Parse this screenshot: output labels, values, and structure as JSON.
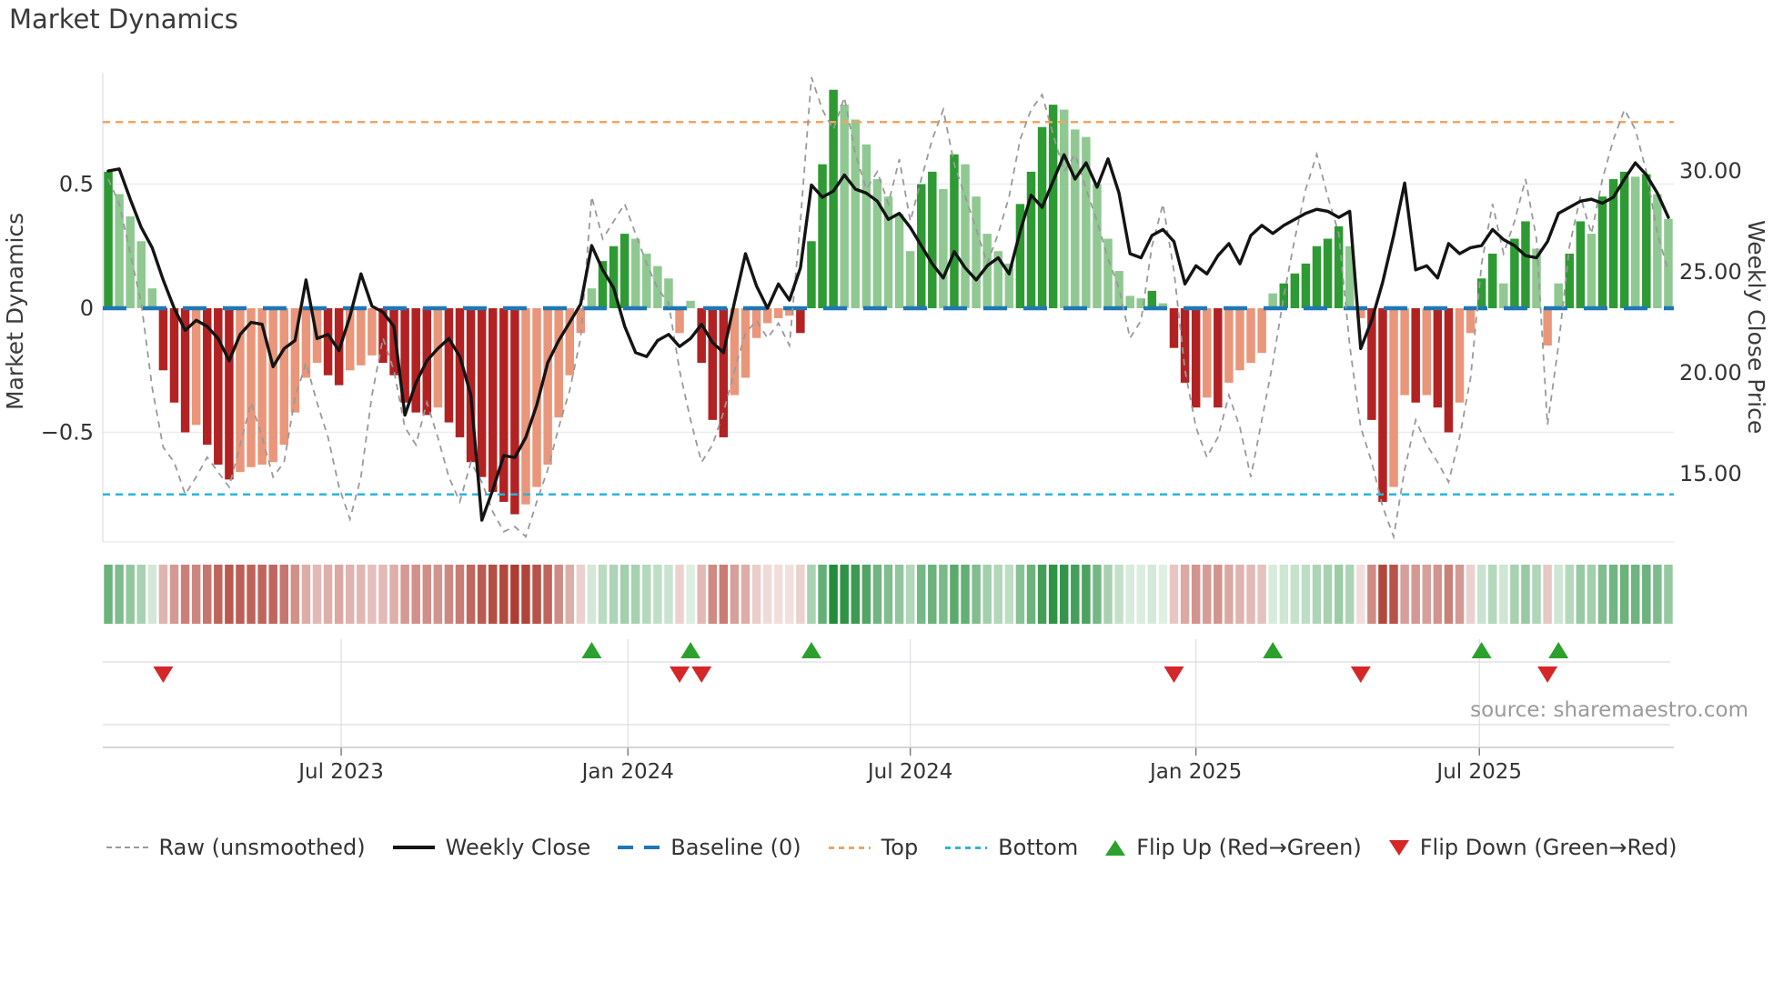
{
  "title": "Market Dynamics",
  "source": "source: sharemaestro.com",
  "axes": {
    "left_label": "Market Dynamics",
    "right_label": "Weekly Close Price",
    "left_ticks": [
      {
        "label": "0.5",
        "value": 0.5
      },
      {
        "label": "0",
        "value": 0
      },
      {
        "label": "−0.5",
        "value": -0.5
      }
    ],
    "right_ticks": [
      {
        "label": "30.00",
        "value": 30
      },
      {
        "label": "25.00",
        "value": 25
      },
      {
        "label": "20.00",
        "value": 20
      },
      {
        "label": "15.00",
        "value": 15
      }
    ],
    "x_ticks": [
      {
        "label": "Jul 2023",
        "week": 21.2
      },
      {
        "label": "Jan 2024",
        "week": 47.3
      },
      {
        "label": "Jul 2024",
        "week": 73.0
      },
      {
        "label": "Jan 2025",
        "week": 99.0
      },
      {
        "label": "Jul 2025",
        "week": 124.8
      }
    ]
  },
  "colors": {
    "bar_pos_dark": "#2e9a33",
    "bar_pos_light": "#90c892",
    "bar_neg_dark": "#b22222",
    "bar_neg_light": "#e9967a",
    "close_line": "#141414",
    "raw_line": "#999999",
    "baseline": "#1f77b4",
    "top_line": "#f4a460",
    "bottom_line": "#29b6d8",
    "flip_up": "#2ca02c",
    "flip_down": "#d62728",
    "grid": "#ececf2",
    "axis_line": "#c9c9cf",
    "tick_text": "#333333",
    "muted_text": "#9a9a9a"
  },
  "legend": {
    "items": [
      {
        "label": "Raw (unsmoothed)",
        "swatch": "raw"
      },
      {
        "label": "Weekly Close",
        "swatch": "close"
      },
      {
        "label": "Baseline (0)",
        "swatch": "baseline"
      },
      {
        "label": "Top",
        "swatch": "top"
      },
      {
        "label": "Bottom",
        "swatch": "bottom"
      },
      {
        "label": "Flip Up (Red→Green)",
        "swatch": "up"
      },
      {
        "label": "Flip Down (Green→Red)",
        "swatch": "down"
      }
    ]
  },
  "chart_data": {
    "type": "bar+line",
    "x_unit": "week",
    "n_weeks": 143,
    "baseline": 0,
    "top_level": 0.75,
    "bottom_level": -0.75,
    "left_ylim": [
      -0.95,
      0.95
    ],
    "right_ylim": [
      11.5,
      34.8
    ],
    "grid_values": [
      0.5,
      -0.5
    ],
    "flip_up_weeks": [
      44,
      53,
      64,
      106,
      125,
      132
    ],
    "flip_down_weeks": [
      5,
      52,
      54,
      97,
      114,
      131
    ],
    "series": [
      {
        "name": "Market Dynamics (smoothed)",
        "axis": "left",
        "type": "bar",
        "values": [
          0.55,
          0.46,
          0.37,
          0.27,
          0.08,
          -0.25,
          -0.38,
          -0.5,
          -0.47,
          -0.55,
          -0.63,
          -0.69,
          -0.66,
          -0.64,
          -0.63,
          -0.62,
          -0.55,
          -0.42,
          -0.28,
          -0.22,
          -0.27,
          -0.31,
          -0.25,
          -0.23,
          -0.19,
          -0.22,
          -0.27,
          -0.38,
          -0.42,
          -0.43,
          -0.4,
          -0.46,
          -0.52,
          -0.62,
          -0.68,
          -0.74,
          -0.78,
          -0.83,
          -0.79,
          -0.72,
          -0.63,
          -0.44,
          -0.27,
          -0.1,
          0.08,
          0.19,
          0.25,
          0.3,
          0.28,
          0.22,
          0.17,
          0.12,
          -0.1,
          0.03,
          -0.22,
          -0.45,
          -0.52,
          -0.35,
          -0.28,
          -0.12,
          -0.06,
          -0.04,
          -0.03,
          -0.1,
          0.27,
          0.58,
          0.88,
          0.82,
          0.76,
          0.66,
          0.52,
          0.45,
          0.38,
          0.23,
          0.5,
          0.55,
          0.48,
          0.62,
          0.58,
          0.45,
          0.3,
          0.23,
          0.18,
          0.42,
          0.55,
          0.73,
          0.82,
          0.8,
          0.72,
          0.69,
          0.5,
          0.28,
          0.15,
          0.05,
          0.04,
          0.07,
          0.02,
          -0.16,
          -0.3,
          -0.4,
          -0.36,
          -0.4,
          -0.3,
          -0.25,
          -0.22,
          -0.18,
          0.06,
          0.1,
          0.14,
          0.18,
          0.25,
          0.28,
          0.33,
          0.25,
          -0.04,
          -0.45,
          -0.78,
          -0.72,
          -0.35,
          -0.38,
          -0.35,
          -0.4,
          -0.5,
          -0.38,
          -0.1,
          0.12,
          0.22,
          0.1,
          0.28,
          0.35,
          0.24,
          -0.15,
          0.1,
          0.22,
          0.35,
          0.3,
          0.45,
          0.52,
          0.55,
          0.53,
          0.54,
          0.46,
          0.36
        ]
      },
      {
        "name": "Raw (unsmoothed)",
        "axis": "left",
        "type": "line",
        "values": [
          0.52,
          0.42,
          0.22,
          0.02,
          -0.32,
          -0.56,
          -0.62,
          -0.75,
          -0.68,
          -0.6,
          -0.66,
          -0.72,
          -0.55,
          -0.38,
          -0.52,
          -0.68,
          -0.62,
          -0.36,
          -0.22,
          -0.38,
          -0.52,
          -0.72,
          -0.85,
          -0.68,
          -0.35,
          -0.12,
          -0.25,
          -0.48,
          -0.55,
          -0.38,
          -0.52,
          -0.68,
          -0.78,
          -0.62,
          -0.7,
          -0.82,
          -0.9,
          -0.88,
          -0.92,
          -0.78,
          -0.65,
          -0.48,
          -0.33,
          -0.12,
          0.45,
          0.28,
          0.35,
          0.42,
          0.3,
          0.18,
          0.08,
          0.02,
          -0.25,
          -0.45,
          -0.62,
          -0.55,
          -0.42,
          -0.25,
          -0.1,
          -0.05,
          -0.12,
          -0.06,
          -0.15,
          0.35,
          0.93,
          0.8,
          0.72,
          0.85,
          0.62,
          0.48,
          0.55,
          0.42,
          0.6,
          0.35,
          0.52,
          0.68,
          0.8,
          0.58,
          0.45,
          0.32,
          0.18,
          0.3,
          0.45,
          0.68,
          0.8,
          0.86,
          0.7,
          0.55,
          0.62,
          0.48,
          0.35,
          0.2,
          0.08,
          -0.12,
          -0.05,
          0.25,
          0.42,
          0.15,
          -0.25,
          -0.48,
          -0.6,
          -0.52,
          -0.35,
          -0.48,
          -0.68,
          -0.45,
          -0.22,
          0.05,
          0.28,
          0.48,
          0.62,
          0.45,
          0.3,
          -0.15,
          -0.48,
          -0.62,
          -0.8,
          -0.92,
          -0.65,
          -0.45,
          -0.55,
          -0.62,
          -0.7,
          -0.52,
          -0.28,
          0.18,
          0.42,
          0.22,
          0.35,
          0.52,
          0.28,
          -0.47,
          -0.15,
          0.25,
          0.45,
          0.3,
          0.52,
          0.68,
          0.8,
          0.72,
          0.55,
          0.3,
          0.15
        ]
      },
      {
        "name": "Weekly Close",
        "axis": "right",
        "type": "line",
        "values": [
          30.0,
          30.1,
          28.6,
          27.2,
          26.2,
          24.6,
          23.2,
          22.1,
          22.6,
          22.3,
          21.7,
          20.6,
          21.9,
          22.5,
          22.4,
          20.3,
          21.2,
          21.6,
          24.6,
          21.7,
          21.9,
          21.1,
          22.8,
          24.9,
          23.3,
          23.0,
          22.3,
          17.9,
          19.5,
          20.6,
          21.2,
          21.7,
          20.8,
          18.9,
          12.7,
          14.2,
          15.9,
          15.8,
          16.8,
          18.4,
          20.5,
          21.6,
          22.5,
          23.4,
          26.3,
          25.1,
          24.2,
          22.3,
          21.0,
          20.8,
          21.6,
          21.9,
          21.3,
          21.7,
          22.4,
          21.5,
          21.0,
          23.5,
          25.9,
          24.3,
          23.2,
          24.4,
          23.6,
          25.2,
          29.3,
          28.7,
          29.0,
          29.8,
          29.1,
          28.9,
          28.5,
          27.6,
          27.9,
          27.2,
          26.3,
          25.4,
          24.7,
          26.0,
          25.2,
          24.6,
          25.3,
          25.7,
          24.9,
          27.0,
          28.8,
          28.2,
          29.5,
          30.8,
          29.6,
          30.4,
          29.2,
          30.6,
          28.9,
          25.9,
          25.7,
          26.8,
          27.1,
          26.5,
          24.4,
          25.3,
          24.9,
          25.8,
          26.4,
          25.4,
          26.8,
          27.3,
          26.9,
          27.3,
          27.6,
          27.9,
          28.1,
          28.0,
          27.7,
          28.0,
          21.2,
          22.6,
          24.5,
          26.8,
          29.4,
          25.1,
          25.3,
          24.7,
          26.4,
          25.9,
          26.2,
          26.3,
          27.1,
          26.6,
          26.3,
          25.8,
          25.7,
          26.5,
          27.9,
          28.2,
          28.5,
          28.6,
          28.4,
          28.7,
          29.6,
          30.4,
          29.8,
          28.9,
          27.7
        ]
      }
    ],
    "heatmap": {
      "note": "weekly color strip mapped from smoothed values",
      "rows": 1
    }
  }
}
